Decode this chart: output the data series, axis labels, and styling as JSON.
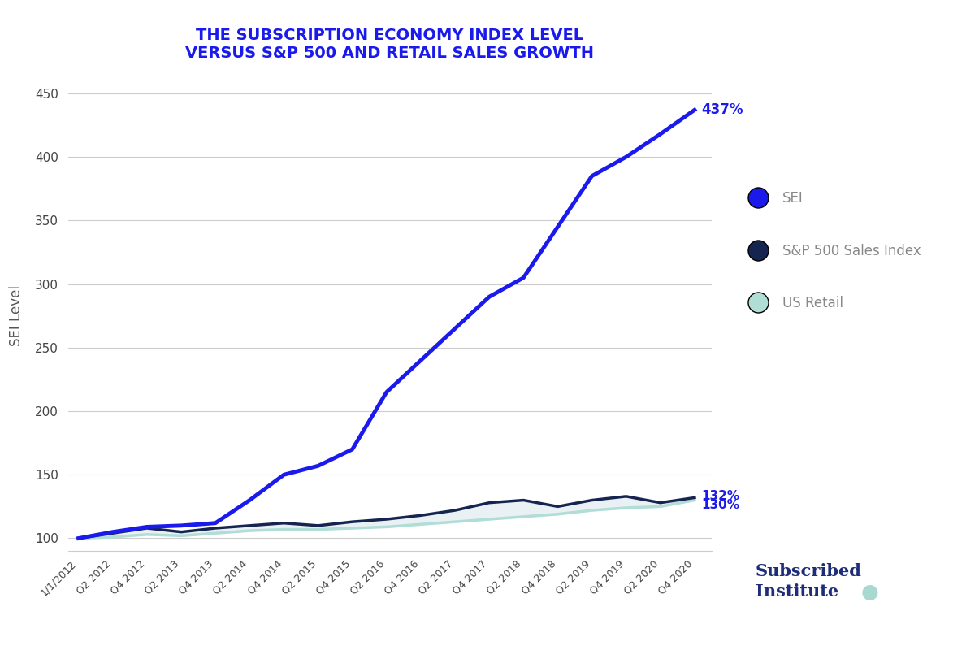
{
  "title_line1": "THE SUBSCRIPTION ECONOMY INDEX LEVEL",
  "title_line2": "VERSUS S&P 500 AND RETAIL SALES GROWTH",
  "ylabel": "SEI Level",
  "x_labels": [
    "1/1/2012",
    "Q2 2012",
    "Q4 2012",
    "Q2 2013",
    "Q4 2013",
    "Q2 2014",
    "Q4 2014",
    "Q2 2015",
    "Q4 2015",
    "Q2 2016",
    "Q4 2016",
    "Q2 2017",
    "Q4 2017",
    "Q2 2018",
    "Q4 2018",
    "Q2 2019",
    "Q4 2019",
    "Q2 2020",
    "Q4 2020"
  ],
  "sei_values": [
    100,
    105,
    109,
    110,
    112,
    130,
    150,
    157,
    170,
    215,
    240,
    265,
    290,
    305,
    345,
    385,
    400,
    418,
    437
  ],
  "sp500_values": [
    100,
    104,
    108,
    105,
    108,
    110,
    112,
    110,
    113,
    115,
    118,
    122,
    128,
    130,
    125,
    130,
    133,
    128,
    132
  ],
  "retail_values": [
    100,
    101,
    103,
    102,
    104,
    106,
    107,
    107,
    108,
    109,
    111,
    113,
    115,
    117,
    119,
    122,
    124,
    125,
    130
  ],
  "sei_color": "#1a1aed",
  "sp500_color": "#162550",
  "retail_color": "#b0ddd6",
  "fill_between_color": "#c8dde8",
  "ylim": [
    90,
    460
  ],
  "yticks": [
    100,
    150,
    200,
    250,
    300,
    350,
    400,
    450
  ],
  "sei_label": "SEI",
  "sp500_label": "S&P 500 Sales Index",
  "retail_label": "US Retail",
  "sei_end_label": "437%",
  "sp500_end_label": "132%",
  "retail_end_label": "130%",
  "background_color": "#ffffff",
  "grid_color": "#cccccc",
  "title_color": "#1a1aed",
  "label_color": "#1a1aed",
  "legend_text_color": "#888888",
  "axis_label_color": "#555555",
  "subscribed_color": "#1e2d78",
  "dot_color": "#a8d8d0"
}
